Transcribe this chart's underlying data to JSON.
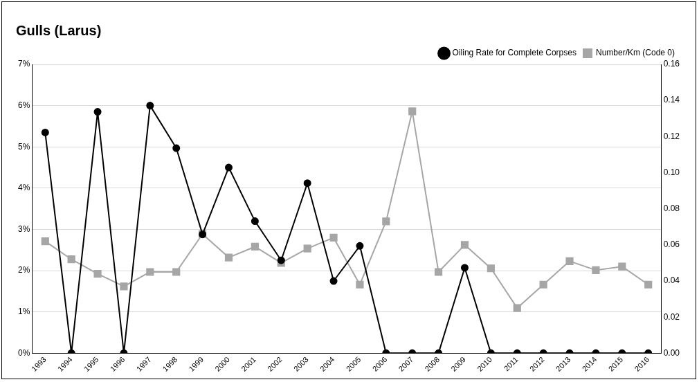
{
  "chart_data": {
    "type": "line",
    "title": "Gulls (Larus)",
    "categories": [
      "1993",
      "1994",
      "1995",
      "1996",
      "1997",
      "1998",
      "1999",
      "2000",
      "2001",
      "2002",
      "2003",
      "2004",
      "2005",
      "2006",
      "2007",
      "2008",
      "2009",
      "2010",
      "2011",
      "2012",
      "2013",
      "2014",
      "2015",
      "2016"
    ],
    "series": [
      {
        "name": "Oiling Rate for Complete Corpses",
        "color": "#000000",
        "marker": "circle",
        "values": [
          5.35,
          0,
          5.85,
          0,
          6.0,
          4.97,
          2.88,
          4.5,
          3.2,
          2.25,
          4.12,
          1.75,
          2.6,
          0,
          0,
          0,
          2.07,
          0,
          0,
          0,
          0,
          0,
          0,
          0
        ]
      },
      {
        "name": "Number/Km (Code 0)",
        "color": "#a6a6a6",
        "marker": "square",
        "axis": "y2",
        "values": [
          0.062,
          0.052,
          0.044,
          0.037,
          0.045,
          0.045,
          0.066,
          0.053,
          0.059,
          0.05,
          0.058,
          0.064,
          0.038,
          0.073,
          0.134,
          0.045,
          0.06,
          0.047,
          0.025,
          0.038,
          0.051,
          0.046,
          0.048,
          0.038
        ]
      }
    ],
    "ylim": [
      0,
      7
    ],
    "yticks": [
      {
        "value": 0,
        "label": "0%"
      },
      {
        "value": 1,
        "label": "1%"
      },
      {
        "value": 2,
        "label": "2%"
      },
      {
        "value": 3,
        "label": "3%"
      },
      {
        "value": 4,
        "label": "4%"
      },
      {
        "value": 5,
        "label": "5%"
      },
      {
        "value": 6,
        "label": "6%"
      },
      {
        "value": 7,
        "label": "7%"
      }
    ],
    "y2lim": [
      0,
      0.16
    ],
    "y2ticks": [
      {
        "value": 0,
        "label": "0.00"
      },
      {
        "value": 0.02,
        "label": "0.02"
      },
      {
        "value": 0.04,
        "label": "0.04"
      },
      {
        "value": 0.06,
        "label": "0.06"
      },
      {
        "value": 0.08,
        "label": "0.08"
      },
      {
        "value": 0.1,
        "label": "0.10"
      },
      {
        "value": 0.12,
        "label": "0.12"
      },
      {
        "value": 0.14,
        "label": "0.14"
      },
      {
        "value": 0.16,
        "label": "0.16"
      }
    ],
    "grid": "y",
    "legend": "top right",
    "line_style": "solid"
  }
}
